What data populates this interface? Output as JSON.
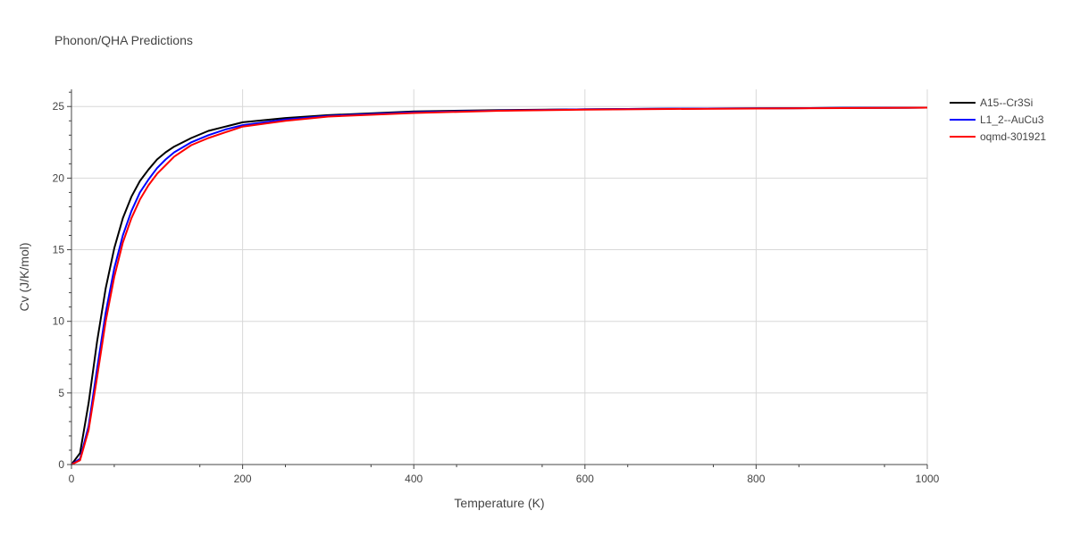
{
  "chart_data": {
    "type": "line",
    "title": "Phonon/QHA Predictions",
    "xlabel": "Temperature (K)",
    "ylabel": "Cv (J/K/mol)",
    "xlim": [
      0,
      1000
    ],
    "ylim": [
      0,
      26.2
    ],
    "xticks": [
      0,
      200,
      400,
      600,
      800,
      1000
    ],
    "yticks": [
      0,
      5,
      10,
      15,
      20,
      25
    ],
    "grid": true,
    "legend_position": "top-right",
    "series": [
      {
        "name": "A15--Cr3Si",
        "color": "#000000",
        "x": [
          0,
          10,
          20,
          30,
          40,
          50,
          60,
          70,
          80,
          90,
          100,
          110,
          120,
          140,
          160,
          180,
          200,
          250,
          300,
          400,
          500,
          600,
          700,
          800,
          900,
          1000
        ],
        "y": [
          0,
          0.8,
          4.3,
          8.6,
          12.3,
          15.1,
          17.2,
          18.7,
          19.8,
          20.6,
          21.3,
          21.8,
          22.2,
          22.8,
          23.3,
          23.6,
          23.9,
          24.2,
          24.4,
          24.65,
          24.75,
          24.8,
          24.85,
          24.87,
          24.9,
          24.92
        ]
      },
      {
        "name": "L1_2--AuCu3",
        "color": "#0000ff",
        "x": [
          0,
          10,
          20,
          30,
          40,
          50,
          60,
          70,
          80,
          90,
          100,
          110,
          120,
          140,
          160,
          180,
          200,
          250,
          300,
          400,
          500,
          600,
          700,
          800,
          900,
          1000
        ],
        "y": [
          0,
          0.4,
          2.7,
          6.7,
          10.6,
          13.7,
          16.0,
          17.7,
          19.0,
          19.9,
          20.7,
          21.3,
          21.8,
          22.5,
          23.0,
          23.4,
          23.7,
          24.1,
          24.35,
          24.6,
          24.72,
          24.8,
          24.85,
          24.87,
          24.9,
          24.92
        ]
      },
      {
        "name": "oqmd-301921",
        "color": "#ff0000",
        "x": [
          0,
          10,
          20,
          30,
          40,
          50,
          60,
          70,
          80,
          90,
          100,
          110,
          120,
          140,
          160,
          180,
          200,
          250,
          300,
          400,
          500,
          600,
          700,
          800,
          900,
          1000
        ],
        "y": [
          0,
          0.3,
          2.4,
          6.1,
          10.0,
          13.1,
          15.5,
          17.2,
          18.5,
          19.5,
          20.3,
          20.9,
          21.5,
          22.3,
          22.8,
          23.2,
          23.6,
          24.0,
          24.3,
          24.55,
          24.7,
          24.78,
          24.83,
          24.86,
          24.89,
          24.92
        ]
      }
    ]
  }
}
